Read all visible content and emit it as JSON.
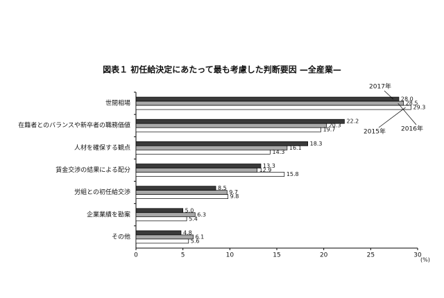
{
  "chart_data": {
    "type": "hbar",
    "title": "図表１ 初任給決定にあたって最も考慮した判断要因 —全産業—",
    "categories": [
      "世間相場",
      "在籍者とのバランスや新卒者の職務価値",
      "人材を確保する観点",
      "賃金交渉の結果による配分",
      "労組との初任給交渉",
      "企業業績を勘案",
      "その他"
    ],
    "series": [
      {
        "name": "2017年",
        "color": "#3a3a3a",
        "values": [
          28.0,
          22.2,
          18.3,
          13.3,
          8.5,
          5.0,
          4.8
        ],
        "value_labels": [
          "28.0",
          "22.2",
          "18.3",
          "13.3",
          "8.5",
          "5.0",
          "4.8"
        ]
      },
      {
        "name": "2016年",
        "color": "#a9a9a9",
        "values": [
          28.5,
          20.3,
          16.1,
          12.9,
          9.7,
          6.3,
          6.1
        ],
        "value_labels": [
          "28.5",
          "20.3",
          "16.1",
          "12.9",
          "9.7",
          "6.3",
          "6.1"
        ]
      },
      {
        "name": "2015年",
        "color": "#ffffff",
        "values": [
          29.3,
          19.7,
          14.3,
          15.8,
          9.8,
          5.4,
          5.6
        ],
        "value_labels": [
          "29.3",
          "19.7",
          "14.3",
          "15.8",
          "9.8",
          "5.4",
          "5.6"
        ]
      }
    ],
    "xlim": [
      0,
      30
    ],
    "xticks": [
      0,
      5,
      10,
      15,
      20,
      25,
      30
    ],
    "x_label": "(%)"
  }
}
